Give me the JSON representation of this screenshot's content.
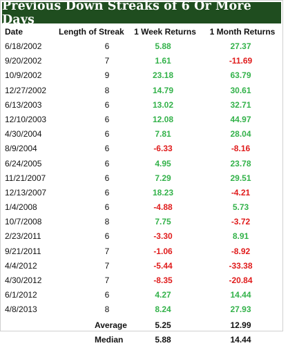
{
  "title": "Previous Down Streaks of 6 Or More Days",
  "colors": {
    "banner": "#1f4d1f",
    "positive": "#33b24a",
    "negative": "#e01b1b"
  },
  "chart_data": {
    "type": "table",
    "title": "Previous Down Streaks of 6 Or More Days",
    "columns": [
      "Date",
      "Length of Streak",
      "1 Week Returns",
      "1 Month Returns"
    ],
    "rows": [
      [
        "6/18/2002",
        "6",
        "5.88",
        "27.37"
      ],
      [
        "9/20/2002",
        "7",
        "1.61",
        "-11.69"
      ],
      [
        "10/9/2002",
        "9",
        "23.18",
        "63.79"
      ],
      [
        "12/27/2002",
        "8",
        "14.79",
        "30.61"
      ],
      [
        "6/13/2003",
        "6",
        "13.02",
        "32.71"
      ],
      [
        "12/10/2003",
        "6",
        "12.08",
        "44.97"
      ],
      [
        "4/30/2004",
        "6",
        "7.81",
        "28.04"
      ],
      [
        "8/9/2004",
        "6",
        "-6.33",
        "-8.16"
      ],
      [
        "6/24/2005",
        "6",
        "4.95",
        "23.78"
      ],
      [
        "11/21/2007",
        "6",
        "7.29",
        "29.51"
      ],
      [
        "12/13/2007",
        "6",
        "18.23",
        "-4.21"
      ],
      [
        "1/4/2008",
        "6",
        "-4.88",
        "5.73"
      ],
      [
        "10/7/2008",
        "8",
        "7.75",
        "-3.72"
      ],
      [
        "2/23/2011",
        "6",
        "-3.30",
        "8.91"
      ],
      [
        "9/21/2011",
        "7",
        "-1.06",
        "-8.92"
      ],
      [
        "4/4/2012",
        "7",
        "-5.44",
        "-33.38"
      ],
      [
        "4/30/2012",
        "7",
        "-8.35",
        "-20.84"
      ],
      [
        "6/1/2012",
        "6",
        "4.27",
        "14.44"
      ],
      [
        "4/8/2013",
        "8",
        "8.24",
        "27.93"
      ]
    ],
    "summary": [
      {
        "label": "Average",
        "week": "5.25",
        "month": "12.99"
      },
      {
        "label": "Median",
        "week": "5.88",
        "month": "14.44"
      }
    ]
  }
}
